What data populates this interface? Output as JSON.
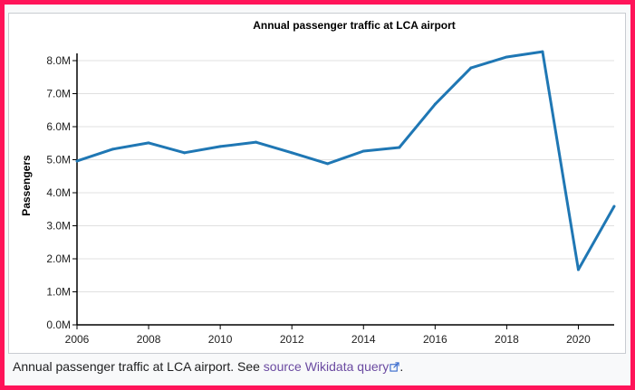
{
  "chart_data": {
    "type": "line",
    "title": "Annual passenger traffic at LCA airport",
    "xlabel": "",
    "ylabel": "Passengers",
    "x": [
      2006,
      2007,
      2008,
      2009,
      2010,
      2011,
      2012,
      2013,
      2014,
      2015,
      2016,
      2017,
      2018,
      2019,
      2020,
      2021
    ],
    "series": [
      {
        "values": [
          4960000,
          5320000,
          5510000,
          5210000,
          5400000,
          5530000,
          5210000,
          4880000,
          5260000,
          5370000,
          6680000,
          7780000,
          8110000,
          8270000,
          1670000,
          3590000
        ],
        "color": "#1f77b4"
      }
    ],
    "xlim": [
      2006,
      2021
    ],
    "ylim": [
      0,
      8200000
    ],
    "x_ticks": [
      "2006",
      "2008",
      "2010",
      "2012",
      "2014",
      "2016",
      "2018",
      "2020"
    ],
    "y_ticks": [
      "0.0M",
      "1.0M",
      "2.0M",
      "3.0M",
      "4.0M",
      "5.0M",
      "6.0M",
      "7.0M",
      "8.0M"
    ],
    "grid": "horizontal",
    "legend": "none"
  },
  "caption": {
    "text": "Annual passenger traffic at LCA airport. See ",
    "link_label": "source Wikidata query",
    "end": "."
  },
  "colors": {
    "frame": "#ff1459",
    "line": "#1f77b4",
    "link": "#6b4ba1"
  }
}
